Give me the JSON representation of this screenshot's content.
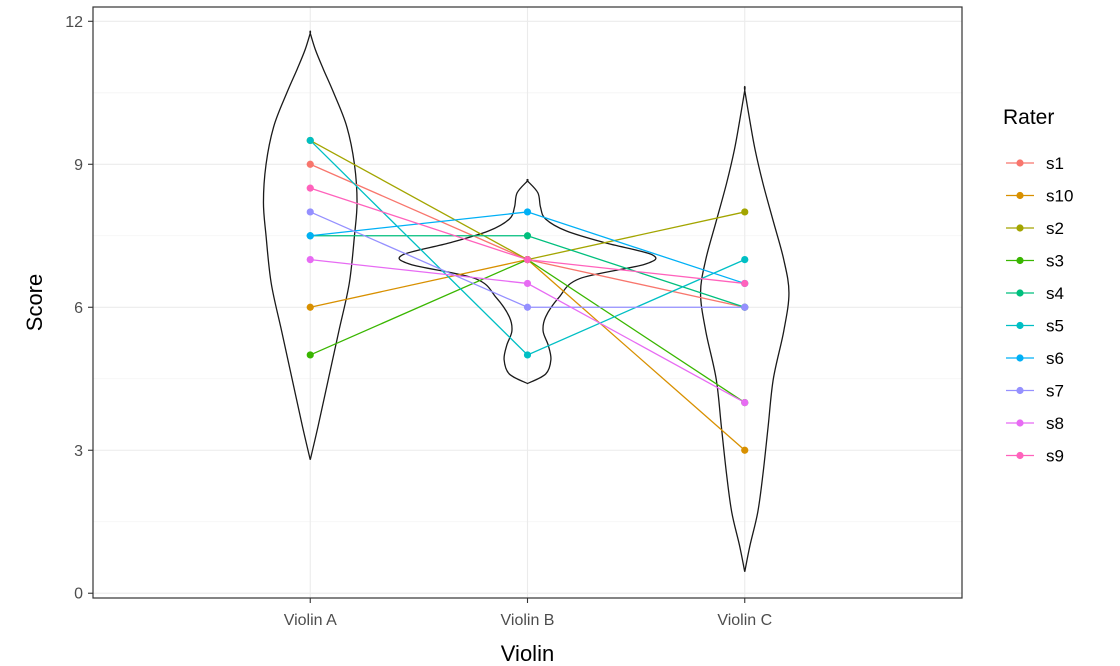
{
  "chart_data": {
    "type": "violin",
    "xlabel": "Violin",
    "ylabel": "Score",
    "categories": [
      "Violin A",
      "Violin B",
      "Violin C"
    ],
    "yticks": [
      0,
      3,
      6,
      9,
      12
    ],
    "ylim": [
      -0.1,
      12.3
    ],
    "grid": true,
    "legend": {
      "title": "Rater",
      "placement": "right"
    },
    "violins": [
      {
        "category": "Violin A",
        "density": [
          [
            2.8,
            0.0
          ],
          [
            3.5,
            0.03
          ],
          [
            4.5,
            0.07
          ],
          [
            5.5,
            0.11
          ],
          [
            6.5,
            0.15
          ],
          [
            7.5,
            0.17
          ],
          [
            8.2,
            0.18
          ],
          [
            9.0,
            0.17
          ],
          [
            9.8,
            0.14
          ],
          [
            10.5,
            0.09
          ],
          [
            11.0,
            0.05
          ],
          [
            11.4,
            0.02
          ],
          [
            11.75,
            0.0
          ]
        ]
      },
      {
        "category": "Violin B",
        "density": [
          [
            4.4,
            0.0
          ],
          [
            4.6,
            0.07
          ],
          [
            4.9,
            0.09
          ],
          [
            5.2,
            0.08
          ],
          [
            5.5,
            0.06
          ],
          [
            5.8,
            0.07
          ],
          [
            6.2,
            0.12
          ],
          [
            6.6,
            0.2
          ],
          [
            6.9,
            0.45
          ],
          [
            7.1,
            0.48
          ],
          [
            7.35,
            0.3
          ],
          [
            7.6,
            0.15
          ],
          [
            7.85,
            0.07
          ],
          [
            8.1,
            0.05
          ],
          [
            8.4,
            0.04
          ],
          [
            8.65,
            0.0
          ]
        ]
      },
      {
        "category": "Violin C",
        "density": [
          [
            0.45,
            0.0
          ],
          [
            1.0,
            0.02
          ],
          [
            1.7,
            0.05
          ],
          [
            2.5,
            0.07
          ],
          [
            3.5,
            0.09
          ],
          [
            4.5,
            0.11
          ],
          [
            5.5,
            0.15
          ],
          [
            6.3,
            0.17
          ],
          [
            7.0,
            0.15
          ],
          [
            7.8,
            0.11
          ],
          [
            8.6,
            0.07
          ],
          [
            9.3,
            0.04
          ],
          [
            9.9,
            0.02
          ],
          [
            10.55,
            0.0
          ]
        ]
      }
    ],
    "series": [
      {
        "name": "s1",
        "color": "#F8766D",
        "values": [
          9.0,
          7.0,
          6.0
        ]
      },
      {
        "name": "s10",
        "color": "#D89000",
        "values": [
          6.0,
          7.0,
          3.0
        ]
      },
      {
        "name": "s2",
        "color": "#A3A500",
        "values": [
          9.5,
          7.0,
          8.0
        ]
      },
      {
        "name": "s3",
        "color": "#39B600",
        "values": [
          5.0,
          7.0,
          4.0
        ]
      },
      {
        "name": "s4",
        "color": "#00BF7D",
        "values": [
          7.5,
          7.5,
          6.0
        ]
      },
      {
        "name": "s5",
        "color": "#00BFC4",
        "values": [
          9.5,
          5.0,
          7.0
        ]
      },
      {
        "name": "s6",
        "color": "#00B0F6",
        "values": [
          7.5,
          8.0,
          6.5
        ]
      },
      {
        "name": "s7",
        "color": "#9590FF",
        "values": [
          8.0,
          6.0,
          6.0
        ]
      },
      {
        "name": "s8",
        "color": "#E76BF3",
        "values": [
          7.0,
          6.5,
          4.0
        ]
      },
      {
        "name": "s9",
        "color": "#FF62BC",
        "values": [
          8.5,
          7.0,
          6.5
        ]
      }
    ]
  }
}
